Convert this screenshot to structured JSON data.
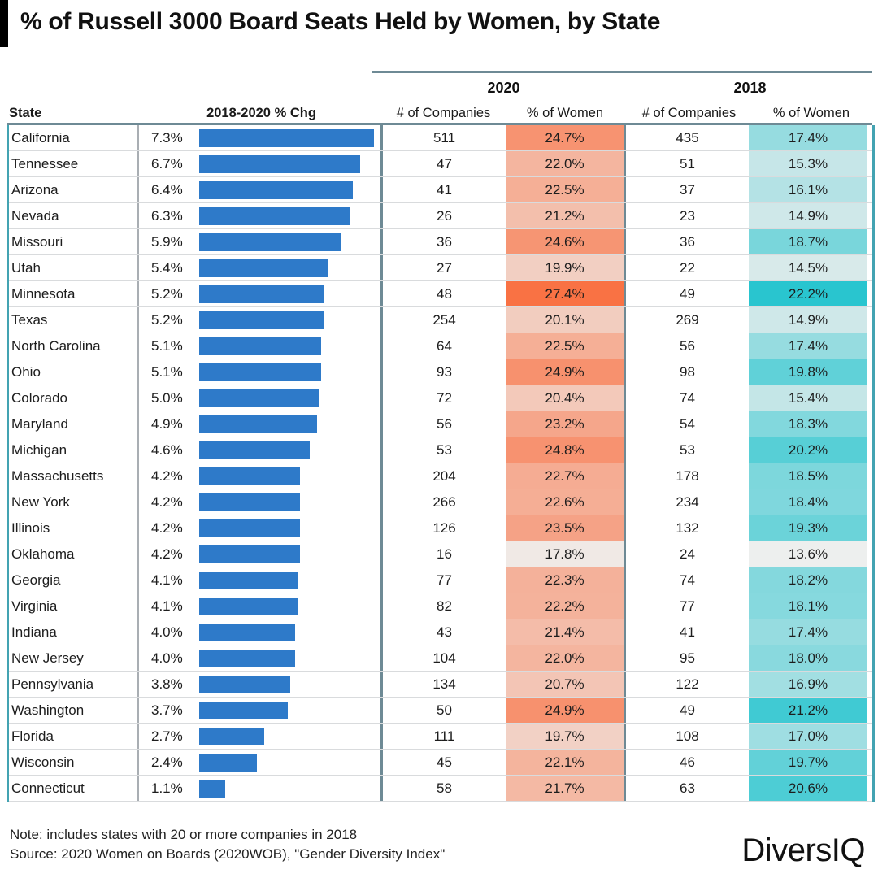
{
  "title": "% of Russell 3000 Board Seats Held by Women, by State",
  "footer": {
    "note": "Note: includes states with 20 or more companies in 2018",
    "source": "Source: 2020 Women on Boards (2020WOB), \"Gender Diversity Index\"",
    "logo": "DiversIQ"
  },
  "colors": {
    "bar_blue": "#2e7ac9",
    "heat_2020_low": "#f0eeec",
    "heat_2020_high": "#f97244",
    "heat_2018_low": "#efefee",
    "heat_2018_high": "#29c5cf",
    "rule_slate": "#6e8a95",
    "edge_teal": "#43a3b2",
    "row_border": "#d9dbdd",
    "accent_black": "#000000"
  },
  "chart_data": {
    "type": "table",
    "title": "% of Russell 3000 Board Seats Held by Women, by State",
    "group_headers": [
      "2020",
      "2018"
    ],
    "columns": [
      "State",
      "2018-2020 % Chg",
      "# of Companies",
      "% of Women",
      "# of Companies",
      "% of Women"
    ],
    "bar_column": {
      "metric": "2018-2020 % Chg",
      "max_value": 7.3,
      "unit": "%"
    },
    "heat_2020": {
      "domain": [
        17.4,
        27.4
      ],
      "note": "orange ramp, darker = higher"
    },
    "heat_2018": {
      "domain": [
        13.5,
        22.2
      ],
      "note": "teal ramp, darker = higher"
    },
    "rows": [
      {
        "state": "California",
        "chg_pct": 7.3,
        "companies_2020": 511,
        "pct_women_2020": 24.7,
        "companies_2018": 435,
        "pct_women_2018": 17.4
      },
      {
        "state": "Tennessee",
        "chg_pct": 6.7,
        "companies_2020": 47,
        "pct_women_2020": 22.0,
        "companies_2018": 51,
        "pct_women_2018": 15.3
      },
      {
        "state": "Arizona",
        "chg_pct": 6.4,
        "companies_2020": 41,
        "pct_women_2020": 22.5,
        "companies_2018": 37,
        "pct_women_2018": 16.1
      },
      {
        "state": "Nevada",
        "chg_pct": 6.3,
        "companies_2020": 26,
        "pct_women_2020": 21.2,
        "companies_2018": 23,
        "pct_women_2018": 14.9
      },
      {
        "state": "Missouri",
        "chg_pct": 5.9,
        "companies_2020": 36,
        "pct_women_2020": 24.6,
        "companies_2018": 36,
        "pct_women_2018": 18.7
      },
      {
        "state": "Utah",
        "chg_pct": 5.4,
        "companies_2020": 27,
        "pct_women_2020": 19.9,
        "companies_2018": 22,
        "pct_women_2018": 14.5
      },
      {
        "state": "Minnesota",
        "chg_pct": 5.2,
        "companies_2020": 48,
        "pct_women_2020": 27.4,
        "companies_2018": 49,
        "pct_women_2018": 22.2
      },
      {
        "state": "Texas",
        "chg_pct": 5.2,
        "companies_2020": 254,
        "pct_women_2020": 20.1,
        "companies_2018": 269,
        "pct_women_2018": 14.9
      },
      {
        "state": "North Carolina",
        "chg_pct": 5.1,
        "companies_2020": 64,
        "pct_women_2020": 22.5,
        "companies_2018": 56,
        "pct_women_2018": 17.4
      },
      {
        "state": "Ohio",
        "chg_pct": 5.1,
        "companies_2020": 93,
        "pct_women_2020": 24.9,
        "companies_2018": 98,
        "pct_women_2018": 19.8
      },
      {
        "state": "Colorado",
        "chg_pct": 5.0,
        "companies_2020": 72,
        "pct_women_2020": 20.4,
        "companies_2018": 74,
        "pct_women_2018": 15.4
      },
      {
        "state": "Maryland",
        "chg_pct": 4.9,
        "companies_2020": 56,
        "pct_women_2020": 23.2,
        "companies_2018": 54,
        "pct_women_2018": 18.3
      },
      {
        "state": "Michigan",
        "chg_pct": 4.6,
        "companies_2020": 53,
        "pct_women_2020": 24.8,
        "companies_2018": 53,
        "pct_women_2018": 20.2
      },
      {
        "state": "Massachusetts",
        "chg_pct": 4.2,
        "companies_2020": 204,
        "pct_women_2020": 22.7,
        "companies_2018": 178,
        "pct_women_2018": 18.5
      },
      {
        "state": "New York",
        "chg_pct": 4.2,
        "companies_2020": 266,
        "pct_women_2020": 22.6,
        "companies_2018": 234,
        "pct_women_2018": 18.4
      },
      {
        "state": "Illinois",
        "chg_pct": 4.2,
        "companies_2020": 126,
        "pct_women_2020": 23.5,
        "companies_2018": 132,
        "pct_women_2018": 19.3
      },
      {
        "state": "Oklahoma",
        "chg_pct": 4.2,
        "companies_2020": 16,
        "pct_women_2020": 17.8,
        "companies_2018": 24,
        "pct_women_2018": 13.6
      },
      {
        "state": "Georgia",
        "chg_pct": 4.1,
        "companies_2020": 77,
        "pct_women_2020": 22.3,
        "companies_2018": 74,
        "pct_women_2018": 18.2
      },
      {
        "state": "Virginia",
        "chg_pct": 4.1,
        "companies_2020": 82,
        "pct_women_2020": 22.2,
        "companies_2018": 77,
        "pct_women_2018": 18.1
      },
      {
        "state": "Indiana",
        "chg_pct": 4.0,
        "companies_2020": 43,
        "pct_women_2020": 21.4,
        "companies_2018": 41,
        "pct_women_2018": 17.4
      },
      {
        "state": "New Jersey",
        "chg_pct": 4.0,
        "companies_2020": 104,
        "pct_women_2020": 22.0,
        "companies_2018": 95,
        "pct_women_2018": 18.0
      },
      {
        "state": "Pennsylvania",
        "chg_pct": 3.8,
        "companies_2020": 134,
        "pct_women_2020": 20.7,
        "companies_2018": 122,
        "pct_women_2018": 16.9
      },
      {
        "state": "Washington",
        "chg_pct": 3.7,
        "companies_2020": 50,
        "pct_women_2020": 24.9,
        "companies_2018": 49,
        "pct_women_2018": 21.2
      },
      {
        "state": "Florida",
        "chg_pct": 2.7,
        "companies_2020": 111,
        "pct_women_2020": 19.7,
        "companies_2018": 108,
        "pct_women_2018": 17.0
      },
      {
        "state": "Wisconsin",
        "chg_pct": 2.4,
        "companies_2020": 45,
        "pct_women_2020": 22.1,
        "companies_2018": 46,
        "pct_women_2018": 19.7
      },
      {
        "state": "Connecticut",
        "chg_pct": 1.1,
        "companies_2020": 58,
        "pct_women_2020": 21.7,
        "companies_2018": 63,
        "pct_women_2018": 20.6
      }
    ]
  }
}
